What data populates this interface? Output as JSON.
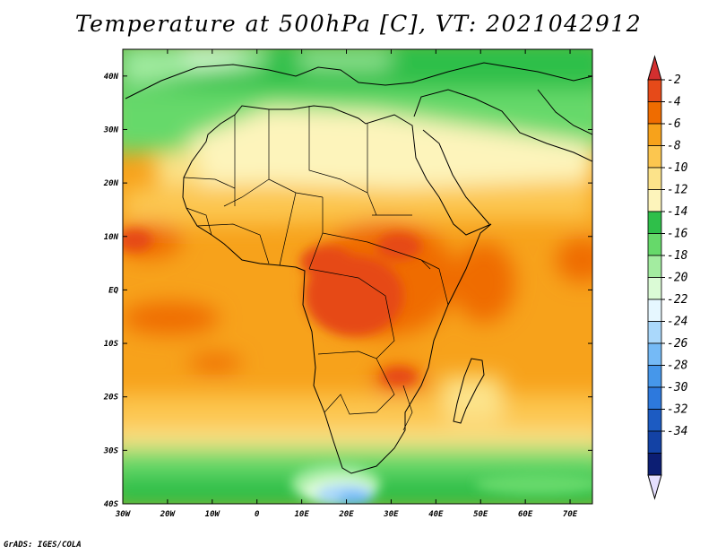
{
  "title": "Temperature at 500hPa [C], VT: 2021042912",
  "credit": "GrADS: IGES/COLA",
  "map": {
    "region": "Africa",
    "lon_range": [
      -30,
      75
    ],
    "lat_range": [
      -40,
      45
    ],
    "x_ticks": [
      "30W",
      "20W",
      "10W",
      "0",
      "10E",
      "20E",
      "30E",
      "40E",
      "50E",
      "60E",
      "70E"
    ],
    "y_ticks": [
      "40N",
      "30N",
      "20N",
      "10N",
      "EQ",
      "10S",
      "20S",
      "30S",
      "40S"
    ]
  },
  "colorbar": {
    "labels": [
      "-2",
      "-4",
      "-6",
      "-8",
      "-10",
      "-12",
      "-14",
      "-16",
      "-18",
      "-20",
      "-22",
      "-24",
      "-26",
      "-28",
      "-30",
      "-32",
      "-34"
    ],
    "colors": [
      "#e64a19",
      "#ef6c00",
      "#f7a21b",
      "#fcc64f",
      "#fce38a",
      "#fdf4bb",
      "#2fbf4a",
      "#66d96a",
      "#a3eca0",
      "#dbfbd6",
      "#e6f7ff",
      "#aad8fb",
      "#75baf6",
      "#4697ea",
      "#2d79dd",
      "#1c5bc2",
      "#1342a5",
      "#0c1e73"
    ],
    "top_arrow_color": "#d32f2f",
    "bottom_arrow_color": "#e6e0ff"
  }
}
